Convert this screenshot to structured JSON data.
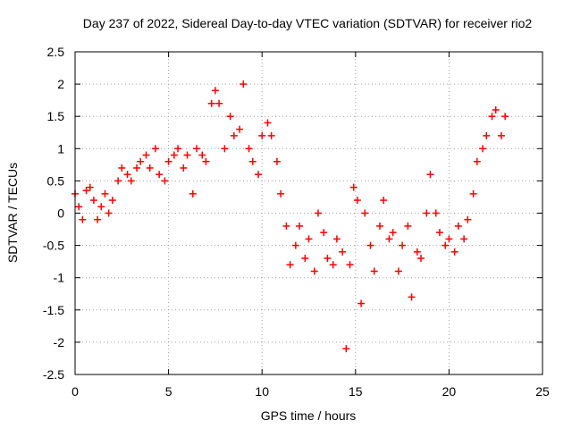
{
  "chart_data": {
    "type": "scatter",
    "title": "Day 237 of 2022, Sidereal Day-to-day VTEC variation (SDTVAR) for receiver rio2",
    "xlabel": "GPS time / hours",
    "ylabel": "SDTVAR / TECUs",
    "xlim": [
      0,
      25
    ],
    "ylim": [
      -2.5,
      2.5
    ],
    "xticks": [
      "0",
      "5",
      "10",
      "15",
      "20",
      "25"
    ],
    "yticks": [
      "2.5",
      "2",
      "1.5",
      "1",
      "0.5",
      "0",
      "-0.5",
      "-1",
      "-1.5",
      "-2",
      "-2.5"
    ],
    "grid": true,
    "marker": "+",
    "color": "#ff0000",
    "series": [
      {
        "x": [
          0.0,
          0.2,
          0.4,
          0.6,
          0.8,
          1.0,
          1.2,
          1.4,
          1.6,
          1.8,
          2.0,
          2.3,
          2.5,
          2.8,
          3.0,
          3.3,
          3.5,
          3.8,
          4.0,
          4.3,
          4.5,
          4.8,
          5.0,
          5.3,
          5.5,
          5.8,
          6.0,
          6.3,
          6.5,
          6.8,
          7.0,
          7.3,
          7.5,
          7.7,
          8.0,
          8.3,
          8.5,
          8.8,
          9.0,
          9.3,
          9.5,
          9.8,
          10.0,
          10.3,
          10.5,
          10.8,
          11.0,
          11.3,
          11.5,
          11.8,
          12.0,
          12.3,
          12.5,
          12.8,
          13.0,
          13.3,
          13.5,
          13.8,
          14.0,
          14.3,
          14.5,
          14.7,
          14.9,
          15.1,
          15.3,
          15.5,
          15.8,
          16.0,
          16.3,
          16.5,
          16.8,
          17.0,
          17.3,
          17.5,
          17.8,
          18.0,
          18.3,
          18.5,
          18.8,
          19.0,
          19.3,
          19.5,
          19.8,
          20.0,
          20.3,
          20.5,
          20.8,
          21.0,
          21.3,
          21.5,
          21.8,
          22.0,
          22.3,
          22.5,
          22.8,
          23.0
        ],
        "y": [
          0.3,
          0.1,
          -0.1,
          0.35,
          0.4,
          0.2,
          -0.1,
          0.1,
          0.3,
          0.0,
          0.2,
          0.5,
          0.7,
          0.6,
          0.5,
          0.7,
          0.8,
          0.9,
          0.7,
          1.0,
          0.6,
          0.5,
          0.8,
          0.9,
          1.0,
          0.7,
          0.9,
          0.3,
          1.0,
          0.9,
          0.8,
          1.7,
          1.9,
          1.7,
          1.0,
          1.5,
          1.2,
          1.3,
          2.0,
          1.0,
          0.8,
          0.6,
          1.2,
          1.4,
          1.2,
          0.8,
          0.3,
          -0.2,
          -0.8,
          -0.5,
          -0.2,
          -0.7,
          -0.4,
          -0.9,
          0.0,
          -0.3,
          -0.7,
          -0.8,
          -0.4,
          -0.6,
          -2.1,
          -0.8,
          0.4,
          0.2,
          -1.4,
          0.0,
          -0.5,
          -0.9,
          -0.2,
          0.2,
          -0.4,
          -0.3,
          -0.9,
          -0.5,
          -0.2,
          -1.3,
          -0.6,
          -0.7,
          0.0,
          0.6,
          0.0,
          -0.3,
          -0.5,
          -0.4,
          -0.6,
          -0.2,
          -0.4,
          -0.1,
          0.3,
          0.8,
          1.0,
          1.2,
          1.5,
          1.6,
          1.2,
          1.5
        ]
      }
    ]
  }
}
